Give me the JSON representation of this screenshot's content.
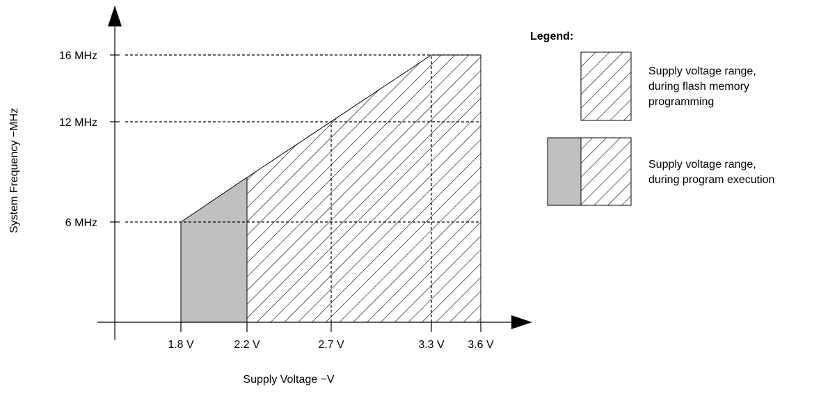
{
  "chart_data": {
    "type": "area",
    "xlabel": "Supply Voltage −V",
    "ylabel": "System Frequency −MHz",
    "x_ticks": [
      1.8,
      2.2,
      2.7,
      3.3,
      3.6
    ],
    "x_tick_labels": [
      "1.8 V",
      "2.2 V",
      "2.7 V",
      "3.3 V",
      "3.6 V"
    ],
    "y_ticks": [
      6,
      12,
      16
    ],
    "y_tick_labels": [
      "6 MHz",
      "12 MHz",
      "16 MHz"
    ],
    "operating_boundary": {
      "x": [
        1.8,
        3.3,
        3.6
      ],
      "y": [
        6,
        16,
        16
      ]
    },
    "series": [
      {
        "name": "Supply voltage range, during program execution",
        "x_range": [
          1.8,
          2.2
        ],
        "fill": "#c0c0c0"
      },
      {
        "name": "Supply voltage range, during flash memory programming",
        "x_range": [
          2.2,
          3.6
        ],
        "fill": "hatched"
      }
    ],
    "legend": {
      "title": "Legend:",
      "position": "top-right",
      "entries": [
        {
          "lines": [
            "Supply voltage range,",
            "during flash memory",
            "programming"
          ]
        },
        {
          "lines": [
            "Supply voltage range,",
            "during program execution"
          ]
        }
      ]
    },
    "gridlines": "dashed at tick values"
  }
}
